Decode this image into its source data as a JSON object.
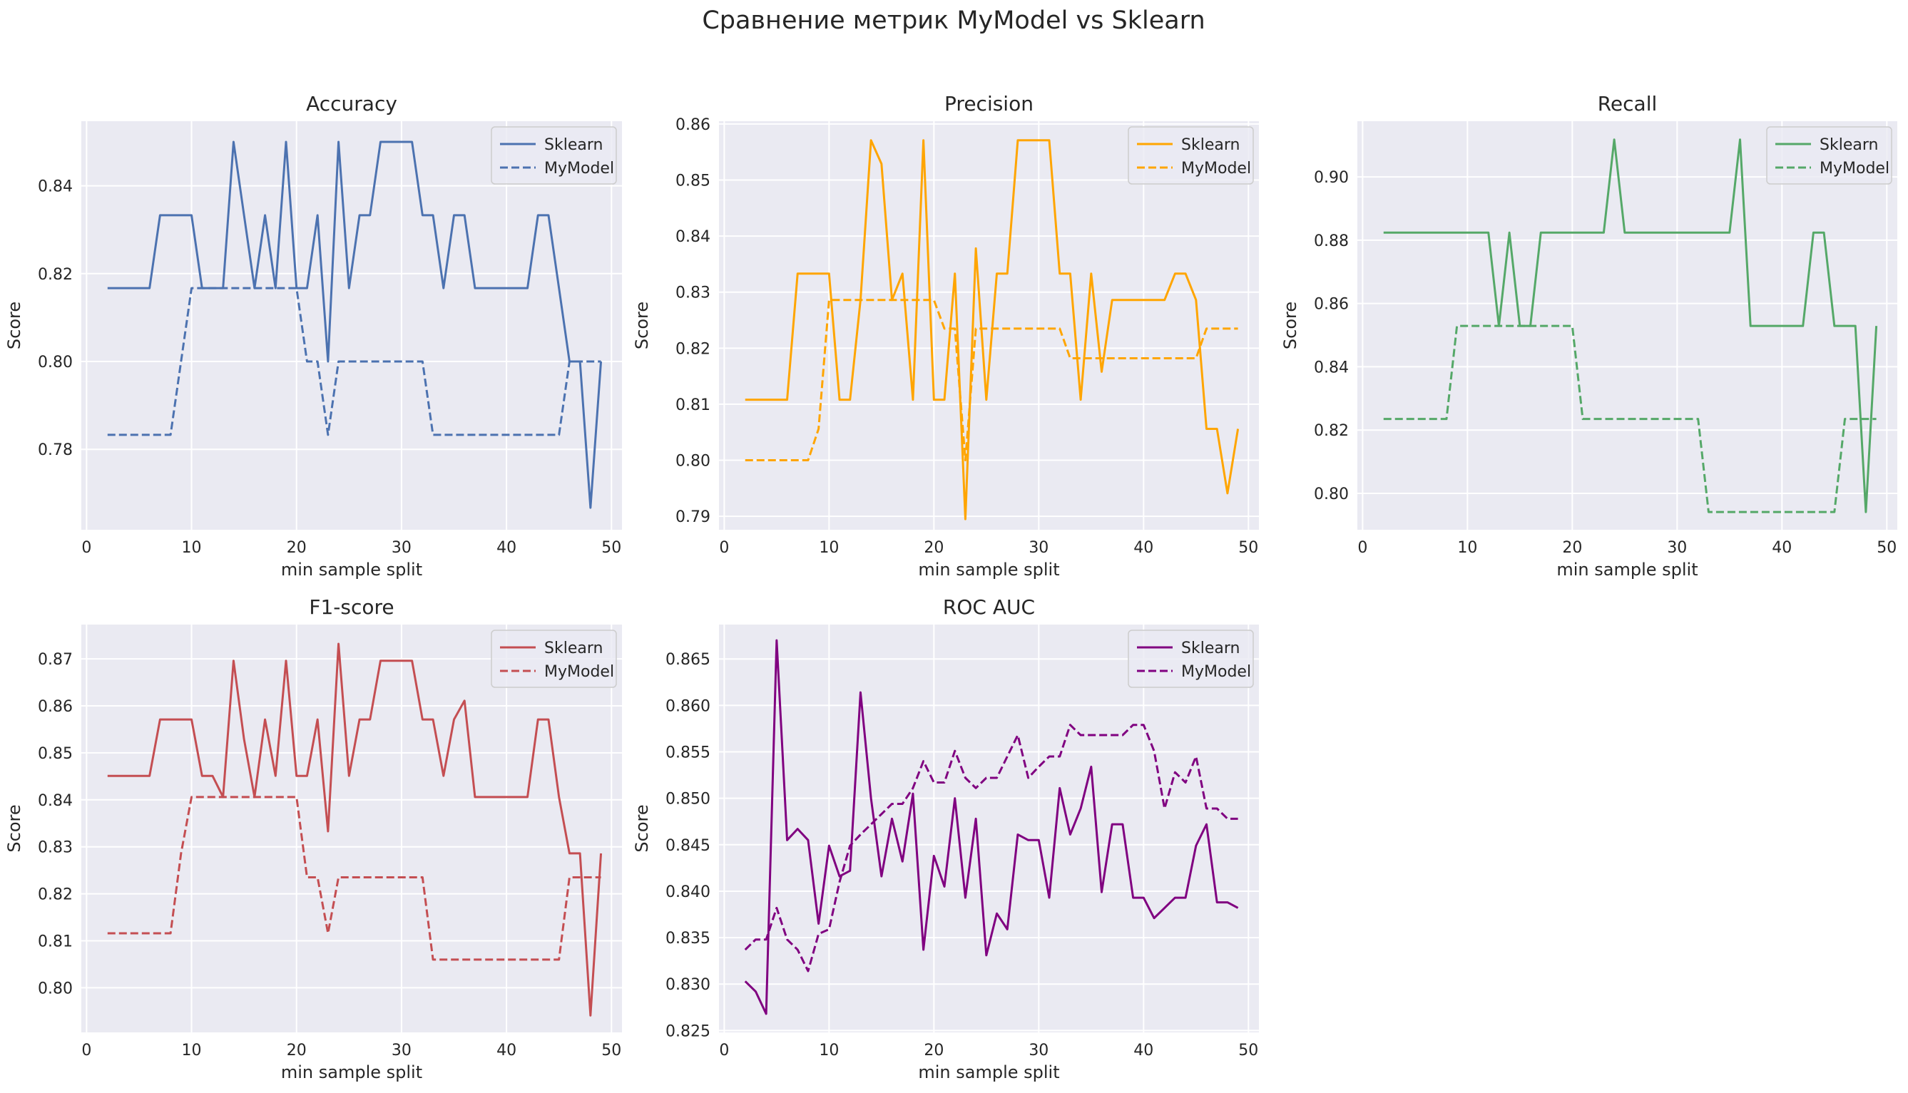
{
  "figure": {
    "suptitle": "Сравнение метрик MyModel vs Sklearn",
    "background": "#ffffff",
    "axes_background": "#eaeaf2",
    "grid_color": "#ffffff"
  },
  "chart_data": [
    {
      "type": "line",
      "title": "Accuracy",
      "xlabel": "min sample split",
      "ylabel": "Score",
      "xlim": [
        -0.5,
        51
      ],
      "ylim": [
        0.7617,
        0.8547
      ],
      "xticks": [
        0,
        10,
        20,
        30,
        40,
        50
      ],
      "yticks": [
        0.78,
        0.8,
        0.82,
        0.84
      ],
      "tick_decimals": 2,
      "color": "#4c72b0",
      "legend": "top-right",
      "grid": true,
      "x": [
        2,
        3,
        4,
        5,
        6,
        7,
        8,
        9,
        10,
        11,
        12,
        13,
        14,
        15,
        16,
        17,
        18,
        19,
        20,
        21,
        22,
        23,
        24,
        25,
        26,
        27,
        28,
        29,
        30,
        31,
        32,
        33,
        34,
        35,
        36,
        37,
        38,
        39,
        40,
        41,
        42,
        43,
        44,
        45,
        46,
        47,
        48,
        49
      ],
      "series": [
        {
          "name": "Sklearn",
          "style": "solid",
          "values": [
            0.8167,
            0.8167,
            0.8167,
            0.8167,
            0.8167,
            0.8333,
            0.8333,
            0.8333,
            0.8333,
            0.8167,
            0.8167,
            0.8167,
            0.85,
            0.8333,
            0.8167,
            0.8333,
            0.8167,
            0.85,
            0.8167,
            0.8167,
            0.8333,
            0.8,
            0.85,
            0.8167,
            0.8333,
            0.8333,
            0.85,
            0.85,
            0.85,
            0.85,
            0.8333,
            0.8333,
            0.8167,
            0.8333,
            0.8333,
            0.8167,
            0.8167,
            0.8167,
            0.8167,
            0.8167,
            0.8167,
            0.8333,
            0.8333,
            0.8167,
            0.8,
            0.8,
            0.7667,
            0.8
          ]
        },
        {
          "name": "MyModel",
          "style": "dashed",
          "values": [
            0.7833,
            0.7833,
            0.7833,
            0.7833,
            0.7833,
            0.7833,
            0.7833,
            0.8,
            0.8167,
            0.8167,
            0.8167,
            0.8167,
            0.8167,
            0.8167,
            0.8167,
            0.8167,
            0.8167,
            0.8167,
            0.8167,
            0.8,
            0.8,
            0.7833,
            0.8,
            0.8,
            0.8,
            0.8,
            0.8,
            0.8,
            0.8,
            0.8,
            0.8,
            0.7833,
            0.7833,
            0.7833,
            0.7833,
            0.7833,
            0.7833,
            0.7833,
            0.7833,
            0.7833,
            0.7833,
            0.7833,
            0.7833,
            0.7833,
            0.8,
            0.8,
            0.8,
            0.8
          ]
        }
      ]
    },
    {
      "type": "line",
      "title": "Precision",
      "xlabel": "min sample split",
      "ylabel": "Score",
      "xlim": [
        -0.5,
        51
      ],
      "ylim": [
        0.7876,
        0.8605
      ],
      "xticks": [
        0,
        10,
        20,
        30,
        40,
        50
      ],
      "yticks": [
        0.79,
        0.8,
        0.81,
        0.82,
        0.83,
        0.84,
        0.85,
        0.86
      ],
      "tick_decimals": 2,
      "color": "#ffa500",
      "legend": "top-right",
      "grid": true,
      "x": [
        2,
        3,
        4,
        5,
        6,
        7,
        8,
        9,
        10,
        11,
        12,
        13,
        14,
        15,
        16,
        17,
        18,
        19,
        20,
        21,
        22,
        23,
        24,
        25,
        26,
        27,
        28,
        29,
        30,
        31,
        32,
        33,
        34,
        35,
        36,
        37,
        38,
        39,
        40,
        41,
        42,
        43,
        44,
        45,
        46,
        47,
        48,
        49
      ],
      "series": [
        {
          "name": "Sklearn",
          "style": "solid",
          "values": [
            0.8108,
            0.8108,
            0.8108,
            0.8108,
            0.8108,
            0.8333,
            0.8333,
            0.8333,
            0.8333,
            0.8108,
            0.8108,
            0.8286,
            0.8571,
            0.8529,
            0.8286,
            0.8333,
            0.8108,
            0.8571,
            0.8108,
            0.8108,
            0.8333,
            0.7895,
            0.8378,
            0.8108,
            0.8333,
            0.8333,
            0.8571,
            0.8571,
            0.8571,
            0.8571,
            0.8333,
            0.8333,
            0.8108,
            0.8333,
            0.8158,
            0.8286,
            0.8286,
            0.8286,
            0.8286,
            0.8286,
            0.8286,
            0.8333,
            0.8333,
            0.8286,
            0.8056,
            0.8056,
            0.7941,
            0.8056
          ]
        },
        {
          "name": "MyModel",
          "style": "dashed",
          "values": [
            0.8,
            0.8,
            0.8,
            0.8,
            0.8,
            0.8,
            0.8,
            0.8056,
            0.8286,
            0.8286,
            0.8286,
            0.8286,
            0.8286,
            0.8286,
            0.8286,
            0.8286,
            0.8286,
            0.8286,
            0.8286,
            0.8235,
            0.8235,
            0.8,
            0.8235,
            0.8235,
            0.8235,
            0.8235,
            0.8235,
            0.8235,
            0.8235,
            0.8235,
            0.8235,
            0.8182,
            0.8182,
            0.8182,
            0.8182,
            0.8182,
            0.8182,
            0.8182,
            0.8182,
            0.8182,
            0.8182,
            0.8182,
            0.8182,
            0.8182,
            0.8235,
            0.8235,
            0.8235,
            0.8235
          ]
        }
      ]
    },
    {
      "type": "line",
      "title": "Recall",
      "xlabel": "min sample split",
      "ylabel": "Score",
      "xlim": [
        -0.5,
        51
      ],
      "ylim": [
        0.7885,
        0.9176
      ],
      "xticks": [
        0,
        10,
        20,
        30,
        40,
        50
      ],
      "yticks": [
        0.8,
        0.82,
        0.84,
        0.86,
        0.88,
        0.9
      ],
      "tick_decimals": 2,
      "color": "#55a868",
      "legend": "top-right",
      "grid": true,
      "x": [
        2,
        3,
        4,
        5,
        6,
        7,
        8,
        9,
        10,
        11,
        12,
        13,
        14,
        15,
        16,
        17,
        18,
        19,
        20,
        21,
        22,
        23,
        24,
        25,
        26,
        27,
        28,
        29,
        30,
        31,
        32,
        33,
        34,
        35,
        36,
        37,
        38,
        39,
        40,
        41,
        42,
        43,
        44,
        45,
        46,
        47,
        48,
        49
      ],
      "series": [
        {
          "name": "Sklearn",
          "style": "solid",
          "values": [
            0.8824,
            0.8824,
            0.8824,
            0.8824,
            0.8824,
            0.8824,
            0.8824,
            0.8824,
            0.8824,
            0.8824,
            0.8824,
            0.8529,
            0.8824,
            0.8529,
            0.8529,
            0.8824,
            0.8824,
            0.8824,
            0.8824,
            0.8824,
            0.8824,
            0.8824,
            0.9118,
            0.8824,
            0.8824,
            0.8824,
            0.8824,
            0.8824,
            0.8824,
            0.8824,
            0.8824,
            0.8824,
            0.8824,
            0.8824,
            0.9118,
            0.8529,
            0.8529,
            0.8529,
            0.8529,
            0.8529,
            0.8529,
            0.8824,
            0.8824,
            0.8529,
            0.8529,
            0.8529,
            0.7941,
            0.8529
          ]
        },
        {
          "name": "MyModel",
          "style": "dashed",
          "values": [
            0.8235,
            0.8235,
            0.8235,
            0.8235,
            0.8235,
            0.8235,
            0.8235,
            0.8529,
            0.8529,
            0.8529,
            0.8529,
            0.8529,
            0.8529,
            0.8529,
            0.8529,
            0.8529,
            0.8529,
            0.8529,
            0.8529,
            0.8235,
            0.8235,
            0.8235,
            0.8235,
            0.8235,
            0.8235,
            0.8235,
            0.8235,
            0.8235,
            0.8235,
            0.8235,
            0.8235,
            0.7941,
            0.7941,
            0.7941,
            0.7941,
            0.7941,
            0.7941,
            0.7941,
            0.7941,
            0.7941,
            0.7941,
            0.7941,
            0.7941,
            0.7941,
            0.8235,
            0.8235,
            0.8235,
            0.8235
          ]
        }
      ]
    },
    {
      "type": "line",
      "title": "F1-score",
      "xlabel": "min sample split",
      "ylabel": "Score",
      "xlim": [
        -0.5,
        51
      ],
      "ylim": [
        0.7905,
        0.8773
      ],
      "xticks": [
        0,
        10,
        20,
        30,
        40,
        50
      ],
      "yticks": [
        0.8,
        0.81,
        0.82,
        0.83,
        0.84,
        0.85,
        0.86,
        0.87
      ],
      "tick_decimals": 2,
      "color": "#c44e52",
      "legend": "top-right",
      "grid": true,
      "x": [
        2,
        3,
        4,
        5,
        6,
        7,
        8,
        9,
        10,
        11,
        12,
        13,
        14,
        15,
        16,
        17,
        18,
        19,
        20,
        21,
        22,
        23,
        24,
        25,
        26,
        27,
        28,
        29,
        30,
        31,
        32,
        33,
        34,
        35,
        36,
        37,
        38,
        39,
        40,
        41,
        42,
        43,
        44,
        45,
        46,
        47,
        48,
        49
      ],
      "series": [
        {
          "name": "Sklearn",
          "style": "solid",
          "values": [
            0.8451,
            0.8451,
            0.8451,
            0.8451,
            0.8451,
            0.8571,
            0.8571,
            0.8571,
            0.8571,
            0.8451,
            0.8451,
            0.8406,
            0.8696,
            0.8529,
            0.8406,
            0.8571,
            0.8451,
            0.8696,
            0.8451,
            0.8451,
            0.8571,
            0.8333,
            0.8732,
            0.8451,
            0.8571,
            0.8571,
            0.8696,
            0.8696,
            0.8696,
            0.8696,
            0.8571,
            0.8571,
            0.8451,
            0.8571,
            0.8611,
            0.8406,
            0.8406,
            0.8406,
            0.8406,
            0.8406,
            0.8406,
            0.8571,
            0.8571,
            0.8406,
            0.8286,
            0.8286,
            0.7941,
            0.8286
          ]
        },
        {
          "name": "MyModel",
          "style": "dashed",
          "values": [
            0.8116,
            0.8116,
            0.8116,
            0.8116,
            0.8116,
            0.8116,
            0.8116,
            0.8286,
            0.8406,
            0.8406,
            0.8406,
            0.8406,
            0.8406,
            0.8406,
            0.8406,
            0.8406,
            0.8406,
            0.8406,
            0.8406,
            0.8235,
            0.8235,
            0.8116,
            0.8235,
            0.8235,
            0.8235,
            0.8235,
            0.8235,
            0.8235,
            0.8235,
            0.8235,
            0.8235,
            0.806,
            0.806,
            0.806,
            0.806,
            0.806,
            0.806,
            0.806,
            0.806,
            0.806,
            0.806,
            0.806,
            0.806,
            0.806,
            0.8235,
            0.8235,
            0.8235,
            0.8235
          ]
        }
      ]
    },
    {
      "type": "line",
      "title": "ROC AUC",
      "xlabel": "min sample split",
      "ylabel": "Score",
      "xlim": [
        -0.5,
        51
      ],
      "ylim": [
        0.8248,
        0.8687
      ],
      "xticks": [
        0,
        10,
        20,
        30,
        40,
        50
      ],
      "yticks": [
        0.825,
        0.83,
        0.835,
        0.84,
        0.845,
        0.85,
        0.855,
        0.86,
        0.865
      ],
      "tick_decimals": 3,
      "color": "#800080",
      "legend": "top-right",
      "grid": true,
      "x": [
        2,
        3,
        4,
        5,
        6,
        7,
        8,
        9,
        10,
        11,
        12,
        13,
        14,
        15,
        16,
        17,
        18,
        19,
        20,
        21,
        22,
        23,
        24,
        25,
        26,
        27,
        28,
        29,
        30,
        31,
        32,
        33,
        34,
        35,
        36,
        37,
        38,
        39,
        40,
        41,
        42,
        43,
        44,
        45,
        46,
        47,
        48,
        49
      ],
      "series": [
        {
          "name": "Sklearn",
          "style": "solid",
          "values": [
            0.8303,
            0.8292,
            0.8268,
            0.867,
            0.8455,
            0.8467,
            0.8455,
            0.8365,
            0.8449,
            0.8416,
            0.8422,
            0.8614,
            0.85,
            0.8416,
            0.8478,
            0.8432,
            0.8505,
            0.8337,
            0.8438,
            0.8405,
            0.85,
            0.8393,
            0.8478,
            0.8331,
            0.8376,
            0.8359,
            0.8461,
            0.8455,
            0.8455,
            0.8393,
            0.8511,
            0.8461,
            0.8489,
            0.8534,
            0.8399,
            0.8472,
            0.8472,
            0.8393,
            0.8393,
            0.8371,
            0.8382,
            0.8393,
            0.8393,
            0.8449,
            0.8472,
            0.8388,
            0.8388,
            0.8382
          ]
        },
        {
          "name": "MyModel",
          "style": "dashed",
          "values": [
            0.8337,
            0.8348,
            0.8348,
            0.8382,
            0.8348,
            0.8337,
            0.8314,
            0.8354,
            0.8359,
            0.841,
            0.8449,
            0.8461,
            0.8472,
            0.8483,
            0.8494,
            0.8494,
            0.8511,
            0.854,
            0.8517,
            0.8517,
            0.8551,
            0.8522,
            0.8511,
            0.8522,
            0.8522,
            0.8545,
            0.8568,
            0.8522,
            0.8534,
            0.8545,
            0.8545,
            0.8579,
            0.8568,
            0.8568,
            0.8568,
            0.8568,
            0.8568,
            0.8579,
            0.8579,
            0.8551,
            0.8489,
            0.8528,
            0.8517,
            0.8545,
            0.8489,
            0.8489,
            0.8478,
            0.8478
          ]
        }
      ]
    }
  ]
}
